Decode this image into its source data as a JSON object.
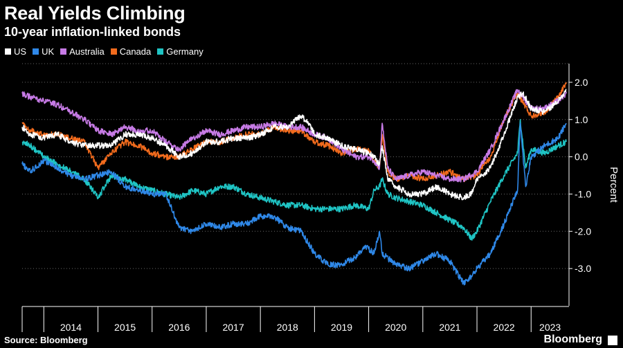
{
  "header": {
    "title": "Real Yields Climbing",
    "subtitle": "10-year inflation-linked bonds"
  },
  "footer": {
    "source": "Source: Bloomberg",
    "brand": "Bloomberg"
  },
  "chart_data": {
    "type": "line",
    "ylabel": "Percent",
    "ylim": [
      -4,
      2.5
    ],
    "yticks": [
      2,
      1,
      0,
      -1,
      -2,
      -3
    ],
    "ytick_labels": [
      "2.0",
      "1.0",
      "0.0",
      "-1.0",
      "-2.0",
      "-3.0"
    ],
    "xlim": [
      2013.6,
      2023.7
    ],
    "year_labels": [
      "2014",
      "2015",
      "2016",
      "2017",
      "2018",
      "2019",
      "2020",
      "2021",
      "2022",
      "2023"
    ],
    "grid": "horizontal dotted",
    "legend_position": "top-left",
    "series": [
      {
        "name": "US",
        "color": "#ffffff",
        "x": [
          2013.6,
          2013.75,
          2014.0,
          2014.25,
          2014.5,
          2014.75,
          2015.0,
          2015.25,
          2015.5,
          2015.75,
          2016.0,
          2016.25,
          2016.5,
          2016.75,
          2017.0,
          2017.25,
          2017.5,
          2017.75,
          2018.0,
          2018.25,
          2018.5,
          2018.75,
          2018.9,
          2019.0,
          2019.25,
          2019.5,
          2019.75,
          2020.0,
          2020.1,
          2020.2,
          2020.25,
          2020.35,
          2020.5,
          2020.75,
          2021.0,
          2021.25,
          2021.5,
          2021.75,
          2021.9,
          2022.0,
          2022.25,
          2022.5,
          2022.75,
          2022.85,
          2023.0,
          2023.25,
          2023.5,
          2023.65
        ],
        "y": [
          0.8,
          0.6,
          0.5,
          0.6,
          0.4,
          0.3,
          0.3,
          0.3,
          0.6,
          0.6,
          0.5,
          0.3,
          0.0,
          0.1,
          0.4,
          0.4,
          0.5,
          0.5,
          0.6,
          0.8,
          0.8,
          1.1,
          0.9,
          0.6,
          0.5,
          0.3,
          0.2,
          0.1,
          0.0,
          -0.2,
          0.3,
          -0.6,
          -0.8,
          -1.0,
          -1.0,
          -0.8,
          -1.0,
          -1.1,
          -1.0,
          -0.6,
          -0.3,
          0.6,
          1.6,
          1.7,
          1.3,
          1.2,
          1.5,
          1.8
        ]
      },
      {
        "name": "UK",
        "color": "#2f88e8",
        "x": [
          2013.6,
          2013.75,
          2014.0,
          2014.25,
          2014.5,
          2014.75,
          2015.0,
          2015.25,
          2015.5,
          2015.75,
          2016.0,
          2016.25,
          2016.5,
          2016.75,
          2017.0,
          2017.25,
          2017.5,
          2017.75,
          2018.0,
          2018.25,
          2018.5,
          2018.75,
          2019.0,
          2019.25,
          2019.5,
          2019.75,
          2019.95,
          2020.1,
          2020.2,
          2020.25,
          2020.5,
          2020.75,
          2021.0,
          2021.25,
          2021.5,
          2021.75,
          2021.9,
          2022.0,
          2022.25,
          2022.5,
          2022.75,
          2022.8,
          2022.9,
          2023.0,
          2023.25,
          2023.5,
          2023.65
        ],
        "y": [
          -0.2,
          -0.4,
          -0.1,
          -0.3,
          -0.5,
          -0.6,
          -0.5,
          -0.4,
          -0.8,
          -0.9,
          -1.0,
          -1.0,
          -1.9,
          -2.0,
          -1.8,
          -1.9,
          -1.8,
          -1.8,
          -1.6,
          -1.6,
          -1.9,
          -2.0,
          -2.6,
          -2.9,
          -2.9,
          -2.7,
          -2.4,
          -2.6,
          -2.0,
          -2.6,
          -2.9,
          -3.0,
          -2.8,
          -2.6,
          -2.8,
          -3.4,
          -3.2,
          -3.0,
          -2.6,
          -1.8,
          -0.9,
          0.9,
          -0.8,
          0.0,
          0.3,
          0.5,
          0.9
        ]
      },
      {
        "name": "Australia",
        "color": "#c77be6",
        "x": [
          2013.6,
          2013.75,
          2014.0,
          2014.25,
          2014.5,
          2014.75,
          2015.0,
          2015.25,
          2015.5,
          2015.75,
          2016.0,
          2016.25,
          2016.5,
          2016.75,
          2017.0,
          2017.25,
          2017.5,
          2017.75,
          2018.0,
          2018.25,
          2018.5,
          2018.75,
          2019.0,
          2019.25,
          2019.5,
          2019.75,
          2020.0,
          2020.1,
          2020.2,
          2020.25,
          2020.35,
          2020.5,
          2020.75,
          2021.0,
          2021.25,
          2021.5,
          2021.75,
          2022.0,
          2022.25,
          2022.5,
          2022.75,
          2023.0,
          2023.25,
          2023.5,
          2023.65
        ],
        "y": [
          1.7,
          1.6,
          1.5,
          1.4,
          1.2,
          1.0,
          0.7,
          0.6,
          0.8,
          0.7,
          0.7,
          0.4,
          0.2,
          0.5,
          0.7,
          0.6,
          0.7,
          0.8,
          0.8,
          0.9,
          0.8,
          0.8,
          0.6,
          0.5,
          0.2,
          0.0,
          0.0,
          -0.1,
          -0.3,
          0.9,
          -0.3,
          -0.6,
          -0.5,
          -0.4,
          -0.5,
          -0.6,
          -0.6,
          -0.4,
          0.2,
          1.0,
          1.8,
          1.3,
          1.3,
          1.5,
          1.7
        ]
      },
      {
        "name": "Canada",
        "color": "#f26b1d",
        "x": [
          2013.6,
          2013.75,
          2014.0,
          2014.25,
          2014.5,
          2014.75,
          2015.0,
          2015.25,
          2015.5,
          2015.75,
          2016.0,
          2016.25,
          2016.5,
          2016.75,
          2017.0,
          2017.25,
          2017.5,
          2017.75,
          2018.0,
          2018.25,
          2018.5,
          2018.75,
          2019.0,
          2019.25,
          2019.5,
          2019.75,
          2020.0,
          2020.1,
          2020.2,
          2020.25,
          2020.35,
          2020.5,
          2020.75,
          2021.0,
          2021.25,
          2021.5,
          2021.75,
          2022.0,
          2022.25,
          2022.5,
          2022.75,
          2023.0,
          2023.25,
          2023.5,
          2023.65
        ],
        "y": [
          0.9,
          0.7,
          0.6,
          0.6,
          0.5,
          0.4,
          -0.3,
          0.1,
          0.4,
          0.3,
          0.1,
          0.0,
          0.0,
          0.2,
          0.4,
          0.4,
          0.5,
          0.6,
          0.6,
          0.8,
          0.7,
          0.7,
          0.4,
          0.3,
          0.1,
          0.2,
          0.2,
          -0.1,
          -0.3,
          0.6,
          -0.4,
          -0.6,
          -0.5,
          -0.6,
          -0.5,
          -0.4,
          -0.6,
          -0.5,
          0.0,
          1.0,
          1.7,
          1.1,
          1.2,
          1.6,
          2.0
        ]
      },
      {
        "name": "Germany",
        "color": "#1fc4c4",
        "x": [
          2013.6,
          2013.75,
          2014.0,
          2014.25,
          2014.5,
          2014.75,
          2015.0,
          2015.25,
          2015.5,
          2015.75,
          2016.0,
          2016.25,
          2016.5,
          2016.75,
          2017.0,
          2017.25,
          2017.5,
          2017.75,
          2018.0,
          2018.25,
          2018.5,
          2018.75,
          2019.0,
          2019.25,
          2019.5,
          2019.75,
          2020.0,
          2020.1,
          2020.2,
          2020.25,
          2020.35,
          2020.5,
          2020.75,
          2021.0,
          2021.25,
          2021.5,
          2021.75,
          2021.9,
          2022.0,
          2022.25,
          2022.5,
          2022.75,
          2022.8,
          2022.9,
          2023.0,
          2023.25,
          2023.5,
          2023.65
        ],
        "y": [
          0.4,
          0.3,
          0.0,
          -0.2,
          -0.4,
          -0.6,
          -1.1,
          -0.5,
          -0.6,
          -0.8,
          -0.9,
          -1.0,
          -1.1,
          -0.9,
          -1.0,
          -0.8,
          -0.8,
          -1.0,
          -1.1,
          -1.2,
          -1.3,
          -1.3,
          -1.4,
          -1.4,
          -1.4,
          -1.3,
          -1.4,
          -0.9,
          -0.8,
          -0.6,
          -1.0,
          -1.1,
          -1.2,
          -1.3,
          -1.5,
          -1.7,
          -1.9,
          -2.2,
          -2.0,
          -1.2,
          -0.5,
          0.1,
          1.0,
          -0.3,
          0.2,
          0.1,
          0.3,
          0.4
        ]
      }
    ]
  }
}
